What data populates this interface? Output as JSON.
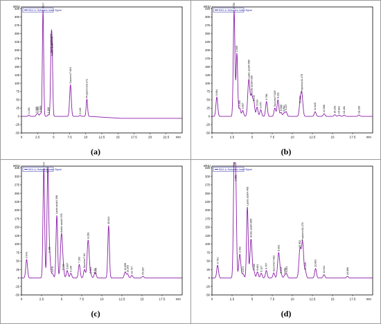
{
  "figure": {
    "panel_labels": [
      "(a)",
      "(b)",
      "(c)",
      "(d)"
    ]
  },
  "chart_data": [
    {
      "type": "line",
      "panel": "(a)",
      "header": "RID1 A, Refractive Index Signal",
      "y_unit": "nRIU",
      "x_unit": "min",
      "xlim": [
        0,
        25
      ],
      "ylim": [
        -50,
        330
      ],
      "x_ticks": [
        0,
        2.5,
        5,
        7.5,
        10,
        12.5,
        15,
        17.5,
        20,
        22.5
      ],
      "y_ticks": [
        -50,
        -25,
        0,
        25,
        50,
        75,
        100,
        125,
        150,
        175,
        200,
        225,
        250,
        275,
        300,
        325
      ],
      "peaks": [
        {
          "x": 1.151,
          "y": 4,
          "label": "1.151"
        },
        {
          "x": 2.365,
          "y": 6,
          "label": "2.365"
        },
        {
          "x": 2.585,
          "y": 7,
          "label": "2.585"
        },
        {
          "x": 2.963,
          "y": 9,
          "label": "2.963"
        },
        {
          "x": 3.352,
          "y": 322,
          "label": "Formic acid/3.352"
        },
        {
          "x": 4.166,
          "y": 5,
          "label": "4.166"
        },
        {
          "x": 4.607,
          "y": 188,
          "label": "Lactic acid/4.607"
        },
        {
          "x": 4.771,
          "y": 178,
          "label": "Acetic acid/4.771"
        },
        {
          "x": 7.619,
          "y": 95,
          "label": "Succinic/7.619"
        },
        {
          "x": 9.129,
          "y": 3,
          "label": "9.129"
        },
        {
          "x": 10.172,
          "y": 52,
          "label": "Propionic/10.172"
        }
      ],
      "baseline": "flat near 0 with slight negative dip after 10.5 min"
    },
    {
      "type": "line",
      "panel": "(b)",
      "header": "RID1 A, Refractive Index Signal",
      "y_unit": "nRIU",
      "x_unit": "min",
      "xlim": [
        0,
        20
      ],
      "ylim": [
        -50,
        330
      ],
      "x_ticks": [
        0,
        2.5,
        5,
        7.5,
        10,
        12.5,
        15,
        17.5
      ],
      "y_ticks": [
        -50,
        -25,
        0,
        25,
        50,
        75,
        100,
        125,
        150,
        175,
        200,
        225,
        250,
        275,
        300,
        325
      ],
      "peaks": [
        {
          "x": 0.604,
          "y": 58,
          "label": "0.604"
        },
        {
          "x": 2.753,
          "y": 320,
          "label": "2.753"
        },
        {
          "x": 3.099,
          "y": 190,
          "label": "3.099"
        },
        {
          "x": 3.45,
          "y": 25,
          "label": "3.450"
        },
        {
          "x": 3.827,
          "y": 18,
          "label": "3.827"
        },
        {
          "x": 4.585,
          "y": 110,
          "label": "Lactic acid/4.585"
        },
        {
          "x": 4.936,
          "y": 62,
          "label": "Acetic acid/4.936"
        },
        {
          "x": 5.211,
          "y": 42,
          "label": "5.211"
        },
        {
          "x": 5.614,
          "y": 28,
          "label": "5.614"
        },
        {
          "x": 6.07,
          "y": 20,
          "label": "6.070"
        },
        {
          "x": 6.786,
          "y": 45,
          "label": "6.786"
        },
        {
          "x": 7.829,
          "y": 25,
          "label": "Succinic/7.829"
        },
        {
          "x": 8.211,
          "y": 50,
          "label": "8.211"
        },
        {
          "x": 8.588,
          "y": 12,
          "label": "8.588"
        },
        {
          "x": 8.962,
          "y": 10,
          "label": "8.962"
        },
        {
          "x": 9.227,
          "y": 14,
          "label": "9.227"
        },
        {
          "x": 10.963,
          "y": 35,
          "label": "10.963"
        },
        {
          "x": 11.179,
          "y": 68,
          "label": "Propionic/11.179"
        },
        {
          "x": 12.84,
          "y": 14,
          "label": "12.840"
        },
        {
          "x": 13.956,
          "y": 8,
          "label": "13.956"
        },
        {
          "x": 15.293,
          "y": 5,
          "label": "15.293"
        },
        {
          "x": 15.821,
          "y": 4,
          "label": "15.821"
        },
        {
          "x": 16.461,
          "y": 4,
          "label": "16.461"
        },
        {
          "x": 18.29,
          "y": 4,
          "label": "18.290"
        }
      ]
    },
    {
      "type": "line",
      "panel": "(c)",
      "header": "RID1 A, Refractive Index Signal",
      "y_unit": "nRIU",
      "x_unit": "min",
      "xlim": [
        0,
        20
      ],
      "ylim": [
        -50,
        330
      ],
      "x_ticks": [
        0,
        2.5,
        5,
        7.5,
        10,
        12.5,
        15,
        17.5
      ],
      "y_ticks": [
        -50,
        -25,
        0,
        25,
        50,
        75,
        100,
        125,
        150,
        175,
        200,
        225,
        250,
        275,
        300,
        325
      ],
      "peaks": [
        {
          "x": 0.641,
          "y": 55,
          "label": "0.641"
        },
        {
          "x": 2.78,
          "y": 325,
          "label": "Formic acid/2.78"
        },
        {
          "x": 3.274,
          "y": 305,
          "label": "3.274"
        },
        {
          "x": 3.481,
          "y": 70,
          "label": "3.481"
        },
        {
          "x": 3.878,
          "y": 12,
          "label": "3.878"
        },
        {
          "x": 4.398,
          "y": 185,
          "label": "Lactic acid/4.398"
        },
        {
          "x": 4.978,
          "y": 130,
          "label": "Acetic acid/4.978"
        },
        {
          "x": 5.211,
          "y": 20,
          "label": "5.211"
        },
        {
          "x": 5.697,
          "y": 22,
          "label": "5.697"
        },
        {
          "x": 6.146,
          "y": 14,
          "label": "6.146"
        },
        {
          "x": 7.193,
          "y": 40,
          "label": "7.193"
        },
        {
          "x": 7.84,
          "y": 25,
          "label": "Succinic/7.84"
        },
        {
          "x": 8.299,
          "y": 112,
          "label": "8.299"
        },
        {
          "x": 8.623,
          "y": 10,
          "label": "8.623"
        },
        {
          "x": 9.12,
          "y": 10,
          "label": "9.12"
        },
        {
          "x": 9.233,
          "y": 8,
          "label": "9.233"
        },
        {
          "x": 10.844,
          "y": 155,
          "label": "10.844"
        },
        {
          "x": 12.899,
          "y": 18,
          "label": "12.899"
        },
        {
          "x": 13.203,
          "y": 12,
          "label": "13.203"
        },
        {
          "x": 13.737,
          "y": 8,
          "label": "13.737"
        },
        {
          "x": 15.115,
          "y": 5,
          "label": "15.115"
        }
      ]
    },
    {
      "type": "line",
      "panel": "(d)",
      "header": "RID1 A, Refractive Index Signal",
      "y_unit": "nRIU",
      "x_unit": "min",
      "xlim": [
        0,
        20
      ],
      "ylim": [
        -50,
        330
      ],
      "x_ticks": [
        0,
        2.5,
        5,
        7.5,
        10,
        12.5,
        15,
        17.5
      ],
      "y_ticks": [
        -50,
        -25,
        0,
        25,
        50,
        75,
        100,
        125,
        150,
        175,
        200,
        225,
        250,
        275,
        300,
        325
      ],
      "peaks": [
        {
          "x": 0.701,
          "y": 38,
          "label": "0.701"
        },
        {
          "x": 2.761,
          "y": 325,
          "label": "Formic acid/2.761"
        },
        {
          "x": 2.953,
          "y": 282,
          "label": "2.953"
        },
        {
          "x": 3.463,
          "y": 70,
          "label": "3.463"
        },
        {
          "x": 3.874,
          "y": 12,
          "label": "3.874"
        },
        {
          "x": 4.405,
          "y": 210,
          "label": "Lactic acid/4.405"
        },
        {
          "x": 4.859,
          "y": 115,
          "label": "Acetic acid/4.859"
        },
        {
          "x": 5.22,
          "y": 20,
          "label": "5.220"
        },
        {
          "x": 5.661,
          "y": 18,
          "label": "5.661"
        },
        {
          "x": 6.127,
          "y": 14,
          "label": "6.127"
        },
        {
          "x": 6.767,
          "y": 22,
          "label": "6.767"
        },
        {
          "x": 7.692,
          "y": 15,
          "label": "Succinic/7.692"
        },
        {
          "x": 8.302,
          "y": 75,
          "label": "8.302"
        },
        {
          "x": 8.613,
          "y": 10,
          "label": "8.613"
        },
        {
          "x": 9.06,
          "y": 8,
          "label": "9.060"
        },
        {
          "x": 9.291,
          "y": 12,
          "label": "9.291"
        },
        {
          "x": 10.952,
          "y": 85,
          "label": "10.952"
        },
        {
          "x": 11.276,
          "y": 105,
          "label": "Propionic/11.276"
        },
        {
          "x": 11.626,
          "y": 20,
          "label": "11.626"
        },
        {
          "x": 12.891,
          "y": 28,
          "label": "12.891"
        },
        {
          "x": 13.944,
          "y": 10,
          "label": "13.944"
        },
        {
          "x": 16.866,
          "y": 5,
          "label": "16.866"
        }
      ]
    }
  ]
}
